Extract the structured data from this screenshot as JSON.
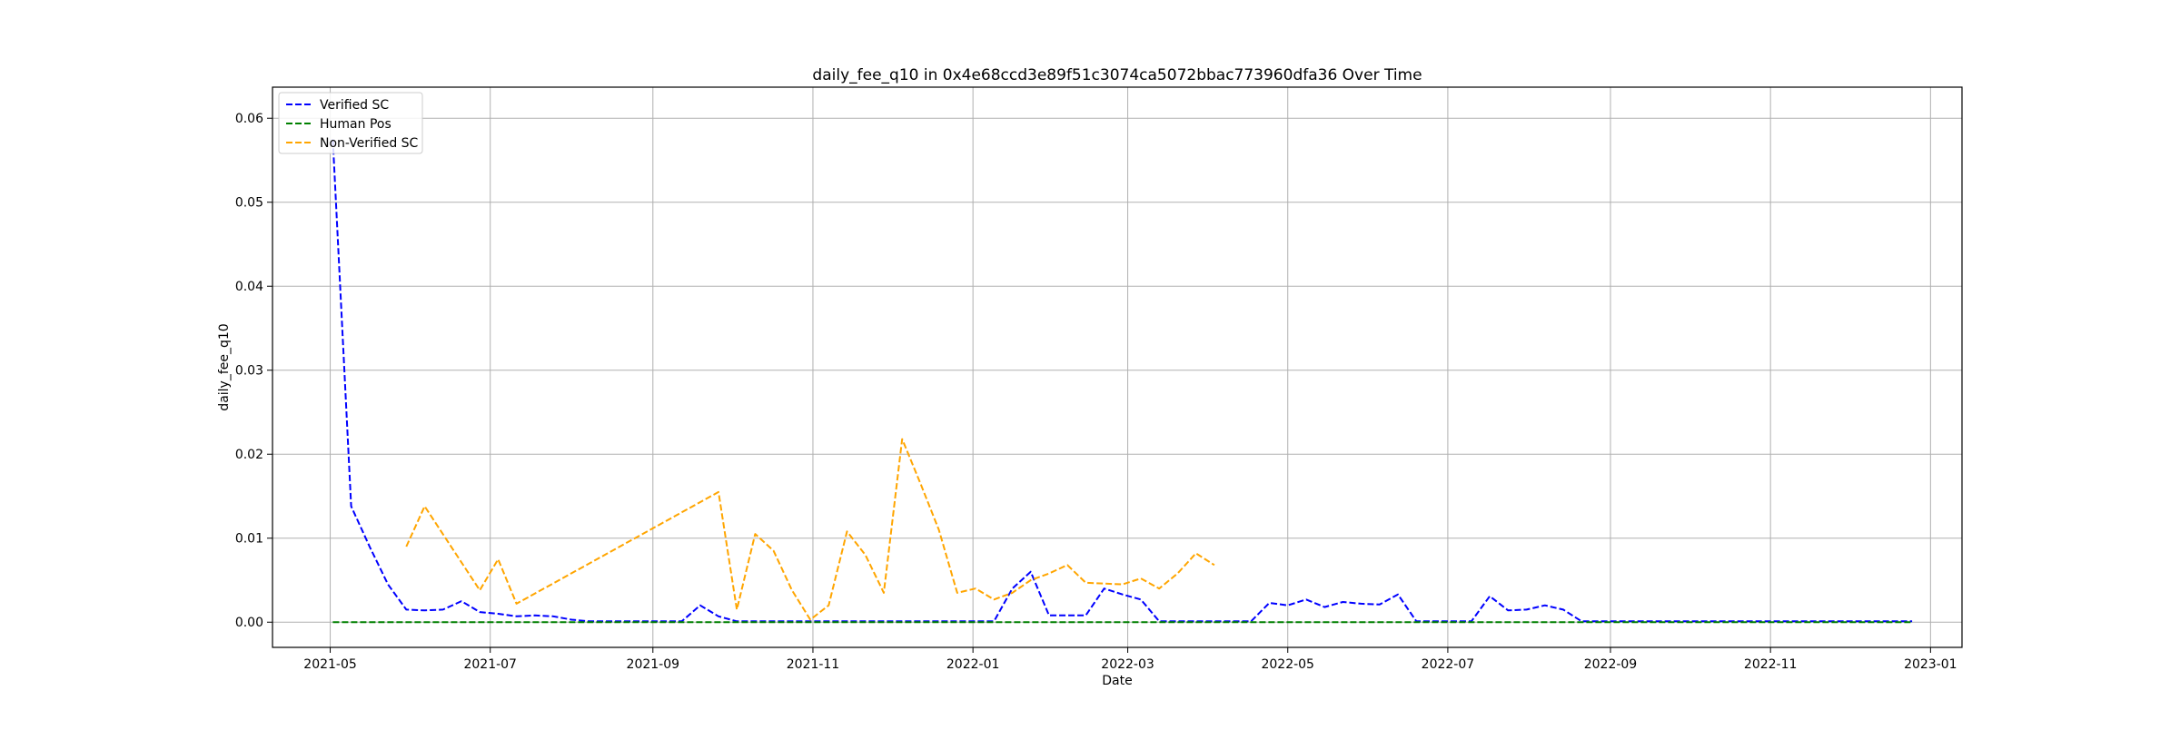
{
  "chart_data": {
    "type": "line",
    "title": "daily_fee_q10 in 0x4e68ccd3e89f51c3074ca5072bbac773960dfa36 Over Time",
    "xlabel": "Date",
    "ylabel": "daily_fee_q10",
    "xlim": [
      "2021-04-09",
      "2023-01-13"
    ],
    "ylim": [
      -0.003,
      0.0637
    ],
    "x_ticks": [
      "2021-05",
      "2021-07",
      "2021-09",
      "2021-11",
      "2022-01",
      "2022-03",
      "2022-05",
      "2022-07",
      "2022-09",
      "2022-11",
      "2023-01"
    ],
    "y_ticks": [
      "0.00",
      "0.01",
      "0.02",
      "0.03",
      "0.04",
      "0.05",
      "0.06"
    ],
    "grid": true,
    "legend_location": "upper left",
    "series": [
      {
        "name": "Verified SC",
        "color": "#0000ff",
        "dash": "dashed",
        "x": [
          "2021-05-02",
          "2021-05-09",
          "2021-05-16",
          "2021-05-23",
          "2021-05-30",
          "2021-06-06",
          "2021-06-13",
          "2021-06-20",
          "2021-06-27",
          "2021-07-04",
          "2021-07-11",
          "2021-07-18",
          "2021-07-25",
          "2021-08-01",
          "2021-08-08",
          "2021-09-12",
          "2021-09-19",
          "2021-09-26",
          "2021-10-03",
          "2022-01-09",
          "2022-01-16",
          "2022-01-23",
          "2022-01-30",
          "2022-02-06",
          "2022-02-13",
          "2022-02-20",
          "2022-02-27",
          "2022-03-06",
          "2022-03-13",
          "2022-04-17",
          "2022-04-24",
          "2022-05-01",
          "2022-05-08",
          "2022-05-15",
          "2022-05-22",
          "2022-05-29",
          "2022-06-05",
          "2022-06-12",
          "2022-06-19",
          "2022-07-10",
          "2022-07-17",
          "2022-07-24",
          "2022-07-31",
          "2022-08-07",
          "2022-08-14",
          "2022-08-21",
          "2022-12-25"
        ],
        "y": [
          0.0575,
          0.0138,
          0.009,
          0.0045,
          0.0015,
          0.0014,
          0.0015,
          0.0025,
          0.0012,
          0.001,
          0.0007,
          0.0008,
          0.0007,
          0.0003,
          0.0001,
          0.0001,
          0.002,
          0.0007,
          0.0001,
          0.0001,
          0.004,
          0.006,
          0.0008,
          0.0008,
          0.0008,
          0.004,
          0.0033,
          0.0027,
          0.0001,
          0.0001,
          0.0023,
          0.002,
          0.0027,
          0.0018,
          0.0024,
          0.0022,
          0.0021,
          0.0033,
          0.0001,
          0.0001,
          0.0031,
          0.0014,
          0.0015,
          0.002,
          0.0015,
          0.0001,
          0.0001
        ]
      },
      {
        "name": "Human Pos",
        "color": "#008000",
        "dash": "dashed",
        "x": [
          "2021-05-02",
          "2022-12-25"
        ],
        "y": [
          0.0,
          0.0
        ]
      },
      {
        "name": "Non-Verified SC",
        "color": "#ffa500",
        "dash": "dashed",
        "x": [
          "2021-05-30",
          "2021-06-06",
          "2021-06-27",
          "2021-07-04",
          "2021-07-11",
          "2021-09-26",
          "2021-10-03",
          "2021-10-10",
          "2021-10-17",
          "2021-10-24",
          "2021-10-31",
          "2021-11-07",
          "2021-11-14",
          "2021-11-21",
          "2021-11-28",
          "2021-12-05",
          "2021-12-12",
          "2021-12-19",
          "2021-12-26",
          "2022-01-02",
          "2022-01-09",
          "2022-01-16",
          "2022-01-23",
          "2022-01-30",
          "2022-02-06",
          "2022-02-13",
          "2022-02-20",
          "2022-02-27",
          "2022-03-06",
          "2022-03-13",
          "2022-03-20",
          "2022-03-27",
          "2022-04-03"
        ],
        "y": [
          0.009,
          0.0138,
          0.0038,
          0.0075,
          0.0022,
          0.0155,
          0.0015,
          0.0105,
          0.0085,
          0.0038,
          0.0003,
          0.002,
          0.0108,
          0.008,
          0.0035,
          0.0218,
          0.0165,
          0.011,
          0.0035,
          0.004,
          0.0027,
          0.0035,
          0.005,
          0.0058,
          0.0068,
          0.0047,
          0.0046,
          0.0045,
          0.0052,
          0.004,
          0.0058,
          0.0082,
          0.0068
        ]
      }
    ]
  }
}
